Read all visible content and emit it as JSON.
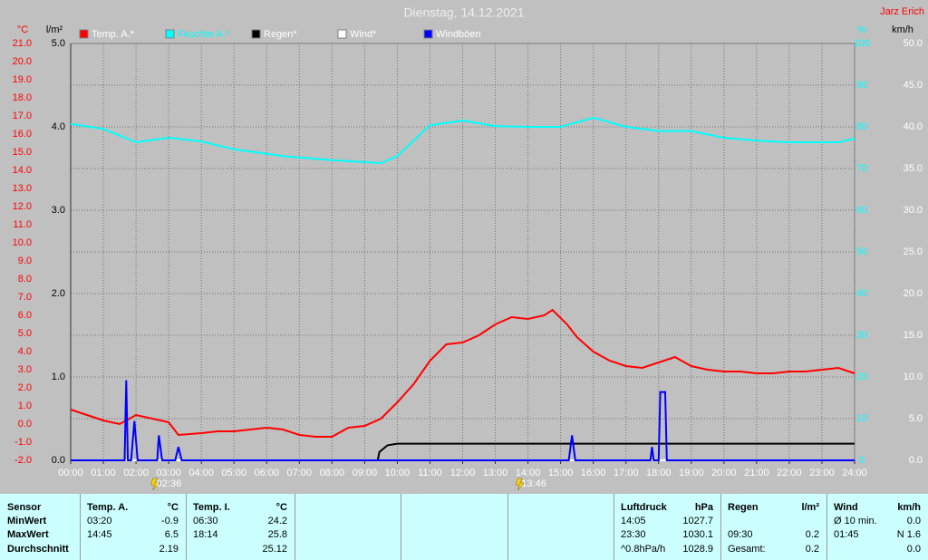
{
  "chart_data": {
    "type": "line",
    "title": "Dienstag, 14.12.2021",
    "author": "Jarz Erich",
    "ylabel": "°C",
    "y2label": "l/m²",
    "y3label": "%",
    "y4label": "km/h",
    "xlim": [
      0,
      24
    ],
    "xticks": [
      {
        "value": 0,
        "label": "00:00"
      },
      {
        "value": 1,
        "label": "01:00"
      },
      {
        "value": 2,
        "label": "02:00"
      },
      {
        "value": 3,
        "label": "03:00"
      },
      {
        "value": 4,
        "label": "04:00"
      },
      {
        "value": 5,
        "label": "05:00"
      },
      {
        "value": 6,
        "label": "06:00"
      },
      {
        "value": 7,
        "label": "07:00"
      },
      {
        "value": 8,
        "label": "08:00"
      },
      {
        "value": 9,
        "label": "09:00"
      },
      {
        "value": 10,
        "label": "10:00"
      },
      {
        "value": 11,
        "label": "11:00"
      },
      {
        "value": 12,
        "label": "12:00"
      },
      {
        "value": 13,
        "label": "13:00"
      },
      {
        "value": 14,
        "label": "14:00"
      },
      {
        "value": 15,
        "label": "15:00"
      },
      {
        "value": 16,
        "label": "16:00"
      },
      {
        "value": 17,
        "label": "17:00"
      },
      {
        "value": 18,
        "label": "18:00"
      },
      {
        "value": 19,
        "label": "19:00"
      },
      {
        "value": 20,
        "label": "20:00"
      },
      {
        "value": 21,
        "label": "21:00"
      },
      {
        "value": 22,
        "label": "22:00"
      },
      {
        "value": 23,
        "label": "23:00"
      },
      {
        "value": 24,
        "label": "24:00"
      }
    ],
    "ylim": [
      -2,
      21
    ],
    "yticks": [
      {
        "value": -2,
        "label": "-2.0"
      },
      {
        "value": -1,
        "label": "-1.0"
      },
      {
        "value": 0,
        "label": "0.0"
      },
      {
        "value": 1,
        "label": "1.0"
      },
      {
        "value": 2,
        "label": "2.0"
      },
      {
        "value": 3,
        "label": "3.0"
      },
      {
        "value": 4,
        "label": "4.0"
      },
      {
        "value": 5,
        "label": "5.0"
      },
      {
        "value": 6,
        "label": "6.0"
      },
      {
        "value": 7,
        "label": "7.0"
      },
      {
        "value": 8,
        "label": "8.0"
      },
      {
        "value": 9,
        "label": "9.0"
      },
      {
        "value": 10,
        "label": "10.0"
      },
      {
        "value": 11,
        "label": "11.0"
      },
      {
        "value": 12,
        "label": "12.0"
      },
      {
        "value": 13,
        "label": "13.0"
      },
      {
        "value": 14,
        "label": "14.0"
      },
      {
        "value": 15,
        "label": "15.0"
      },
      {
        "value": 16,
        "label": "16.0"
      },
      {
        "value": 17,
        "label": "17.0"
      },
      {
        "value": 18,
        "label": "18.0"
      },
      {
        "value": 19,
        "label": "19.0"
      },
      {
        "value": 20,
        "label": "20.0"
      },
      {
        "value": 21,
        "label": "21.0"
      }
    ],
    "y2lim": [
      0,
      5
    ],
    "y2ticks": [
      {
        "value": 0,
        "label": "0.0"
      },
      {
        "value": 1,
        "label": "1.0"
      },
      {
        "value": 2,
        "label": "2.0"
      },
      {
        "value": 3,
        "label": "3.0"
      },
      {
        "value": 4,
        "label": "4.0"
      },
      {
        "value": 5,
        "label": "5.0"
      }
    ],
    "y3lim": [
      0,
      100
    ],
    "y3ticks": [
      0,
      10,
      20,
      30,
      40,
      50,
      60,
      70,
      80,
      90,
      100
    ],
    "y4lim": [
      0,
      50
    ],
    "y4ticks": [
      {
        "value": 0,
        "label": "0.0"
      },
      {
        "value": 5,
        "label": "5.0"
      },
      {
        "value": 10,
        "label": "10.0"
      },
      {
        "value": 15,
        "label": "15.0"
      },
      {
        "value": 20,
        "label": "20.0"
      },
      {
        "value": 25,
        "label": "25.0"
      },
      {
        "value": 30,
        "label": "30.0"
      },
      {
        "value": 35,
        "label": "35.0"
      },
      {
        "value": 40,
        "label": "40.0"
      },
      {
        "value": 45,
        "label": "45.0"
      },
      {
        "value": 50,
        "label": "50.0"
      }
    ],
    "grid": true,
    "series": [
      {
        "name": "Temp. A.*",
        "color": "#ff0000",
        "axis": "y",
        "x": [
          0,
          0.5,
          1,
          1.5,
          2,
          2.5,
          3,
          3.3,
          4,
          4.5,
          5,
          5.5,
          6,
          6.5,
          7,
          7.5,
          8,
          8.5,
          9,
          9.5,
          10,
          10.5,
          11,
          11.5,
          12,
          12.5,
          13,
          13.5,
          14,
          14.5,
          14.75,
          15.2,
          15.5,
          16,
          16.5,
          17,
          17.5,
          18,
          18.5,
          19,
          19.5,
          20,
          20.5,
          21,
          21.5,
          22,
          22.5,
          23,
          23.5,
          24
        ],
        "values": [
          0.8,
          0.5,
          0.2,
          0.0,
          0.5,
          0.3,
          0.1,
          -0.6,
          -0.5,
          -0.4,
          -0.4,
          -0.3,
          -0.2,
          -0.3,
          -0.6,
          -0.7,
          -0.7,
          -0.2,
          -0.1,
          0.3,
          1.2,
          2.2,
          3.5,
          4.4,
          4.5,
          4.9,
          5.5,
          5.9,
          5.8,
          6.0,
          6.3,
          5.5,
          4.8,
          4.0,
          3.5,
          3.2,
          3.1,
          3.4,
          3.7,
          3.2,
          3.0,
          2.9,
          2.9,
          2.8,
          2.8,
          2.9,
          2.9,
          3.0,
          3.1,
          2.8
        ]
      },
      {
        "name": "Feuchte A.*",
        "color": "#00ffff",
        "axis": "y3",
        "x": [
          0,
          1,
          2,
          3,
          4,
          5,
          6.5,
          8,
          9.5,
          10,
          11,
          12,
          13,
          14,
          15,
          16,
          17,
          18,
          19,
          20,
          21,
          22,
          23.5,
          24
        ],
        "values": [
          80.7,
          79.5,
          76.3,
          77.4,
          76.5,
          74.6,
          73,
          72,
          71.3,
          73,
          80.4,
          81.5,
          80.2,
          80.0,
          80.0,
          82.2,
          80.0,
          79.0,
          79.0,
          77.4,
          76.7,
          76.3,
          76.3,
          77.2
        ]
      },
      {
        "name": "Regen*",
        "color": "#000000",
        "axis": "y2",
        "x": [
          0,
          9.4,
          9.45,
          9.7,
          10,
          24
        ],
        "values": [
          0,
          0,
          0.1,
          0.18,
          0.2,
          0.2
        ]
      },
      {
        "name": "Wind*",
        "color": "#ffffff",
        "axis": "y4",
        "x": [
          0,
          24
        ],
        "values": [
          0,
          0
        ]
      },
      {
        "name": "Windböen",
        "color": "#0000ff",
        "axis": "y4",
        "x": [
          0,
          1.65,
          1.7,
          1.75,
          1.85,
          1.95,
          2.05,
          2.2,
          2.65,
          2.7,
          2.8,
          3.2,
          3.3,
          3.4,
          15.25,
          15.35,
          15.45,
          17.75,
          17.8,
          17.85,
          18.0,
          18.05,
          18.2,
          18.25,
          24
        ],
        "values": [
          0,
          0,
          9.6,
          0,
          0,
          4.7,
          0,
          0,
          0,
          3.0,
          0,
          0,
          1.6,
          0,
          0,
          3.0,
          0,
          0,
          1.6,
          0,
          0,
          8.2,
          8.2,
          0,
          0
        ]
      }
    ],
    "annotations": [
      {
        "x": 2.6,
        "label": "02:36"
      },
      {
        "x": 13.77,
        "label": "13:46"
      }
    ]
  },
  "table": {
    "labels": [
      "Sensor",
      "MinWert",
      "MaxWert",
      "Durchschnitt"
    ],
    "groups": [
      {
        "name": "Temp. A.",
        "unit": "°C",
        "min": [
          "03:20",
          "-0.9"
        ],
        "max": [
          "14:45",
          "6.5"
        ],
        "avg": [
          "2.19"
        ]
      },
      {
        "name": "Temp. I.",
        "unit": "°C",
        "min": [
          "06:30",
          "24.2"
        ],
        "max": [
          "18:14",
          "25.8"
        ],
        "avg": [
          "25.12"
        ]
      },
      {
        "name": "Luftdruck",
        "unit": "hPa",
        "min": [
          "14:05",
          "1027.7"
        ],
        "max": [
          "23:30",
          "1030.1"
        ],
        "avg": [
          "^0.8hPa/h",
          "1028.9"
        ]
      },
      {
        "name": "Regen",
        "unit": "l/m²",
        "max": [
          "09:30",
          "0.2"
        ],
        "avg": [
          "Gesamt:",
          "0.2"
        ]
      },
      {
        "name": "Wind",
        "unit": "km/h",
        "min": [
          "Ø 10 min.",
          "0.0"
        ],
        "max": [
          "01:45",
          "N 1.6"
        ],
        "avg": [
          "0.0"
        ]
      }
    ]
  }
}
